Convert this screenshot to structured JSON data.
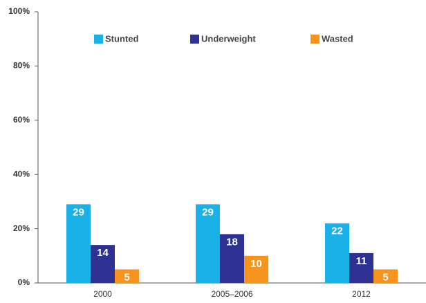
{
  "chart_data": {
    "type": "bar",
    "categories": [
      "2000",
      "2005–2006",
      "2012"
    ],
    "series": [
      {
        "name": "Stunted",
        "color": "#1ab0e8",
        "values": [
          29,
          29,
          22
        ]
      },
      {
        "name": "Underweight",
        "color": "#2e3192",
        "values": [
          14,
          18,
          11
        ]
      },
      {
        "name": "Wasted",
        "color": "#f7941d",
        "values": [
          5,
          10,
          5
        ]
      }
    ],
    "ylim": [
      0,
      100
    ],
    "yticks": [
      {
        "value": 0,
        "label": "0%"
      },
      {
        "value": 20,
        "label": "20%"
      },
      {
        "value": 40,
        "label": "40%"
      },
      {
        "value": 60,
        "label": "60%"
      },
      {
        "value": 80,
        "label": "80%"
      },
      {
        "value": 100,
        "label": "100%"
      }
    ],
    "grid": false,
    "legend": "top"
  }
}
